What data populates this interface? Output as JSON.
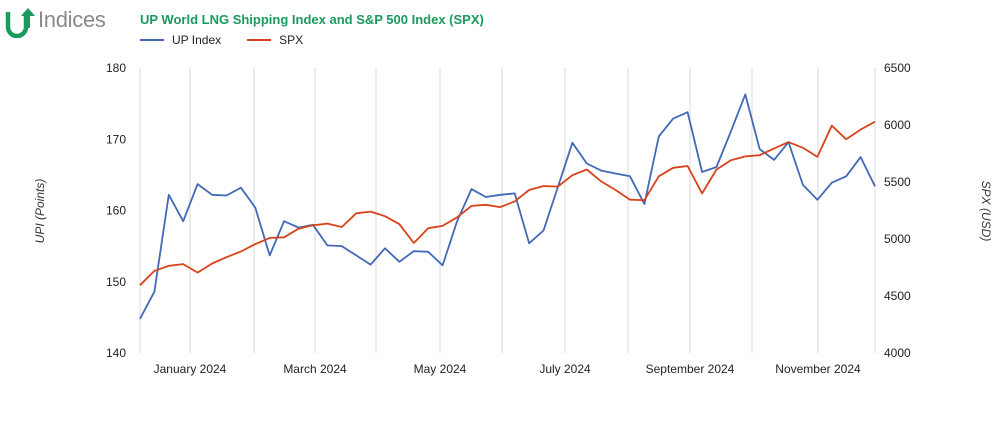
{
  "brand": {
    "name": "Indices"
  },
  "chart_data": {
    "type": "line",
    "title": "UP World LNG Shipping Index and S&P 500 Index (SPX)",
    "ylabel": "UPI (Points)",
    "y2label": "SPX (USD)",
    "ylim": [
      140,
      180
    ],
    "y2lim": [
      4000,
      6500
    ],
    "yticks": [
      140,
      150,
      160,
      170,
      180
    ],
    "y2ticks": [
      4000,
      4500,
      5000,
      5500,
      6000,
      6500
    ],
    "xlabels": [
      "January 2024",
      "March 2024",
      "May 2024",
      "July 2024",
      "September 2024",
      "November 2024"
    ],
    "legend_position": "top-left",
    "colors": {
      "up": "#4169b8",
      "spx": "#d9421a",
      "grid": "#d9d9d9"
    },
    "series": [
      {
        "name": "UP Index",
        "axis": "left",
        "values": [
          144.8,
          148.6,
          162.2,
          158.5,
          163.7,
          162.2,
          162.1,
          163.2,
          160.4,
          153.7,
          158.5,
          157.6,
          158.0,
          155.1,
          155.0,
          153.7,
          152.4,
          154.7,
          152.8,
          154.3,
          154.2,
          152.3,
          158.5,
          163.0,
          161.9,
          162.2,
          162.4,
          155.4,
          157.2,
          163.3,
          169.5,
          166.6,
          165.6,
          165.2,
          164.8,
          160.9,
          170.4,
          172.9,
          173.8,
          165.4,
          166.1,
          171.1,
          176.3,
          168.6,
          167.1,
          169.6,
          163.6,
          161.5,
          163.9,
          164.8,
          167.5,
          163.4
        ]
      },
      {
        "name": "SPX",
        "axis": "right",
        "values": [
          4595,
          4720,
          4765,
          4780,
          4705,
          4785,
          4840,
          4890,
          4955,
          5010,
          5015,
          5090,
          5120,
          5135,
          5105,
          5225,
          5240,
          5200,
          5130,
          4965,
          5095,
          5115,
          5190,
          5290,
          5300,
          5280,
          5330,
          5430,
          5465,
          5460,
          5560,
          5610,
          5505,
          5430,
          5345,
          5340,
          5550,
          5625,
          5640,
          5400,
          5610,
          5690,
          5725,
          5735,
          5795,
          5850,
          5800,
          5720,
          5995,
          5875,
          5960,
          6030
        ]
      }
    ]
  }
}
